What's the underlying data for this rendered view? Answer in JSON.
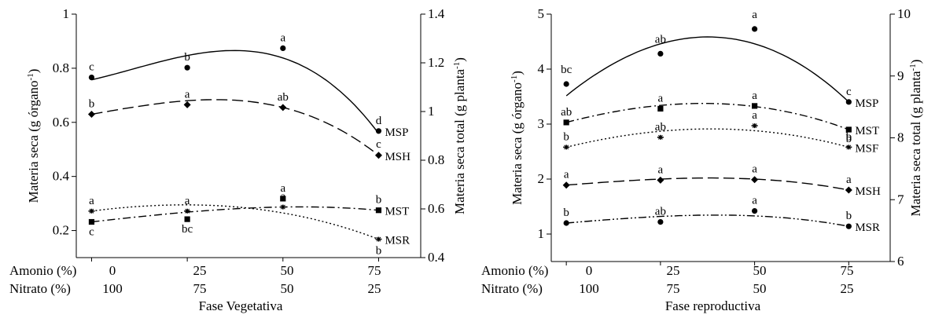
{
  "chart_data": [
    {
      "type": "scatter",
      "xlabel": "Fase Vegetativa",
      "row_labels": [
        "Amonio  (%)",
        "Nitrato   (%)"
      ],
      "x": [
        0,
        25,
        50,
        75
      ],
      "x_ticks_top": [
        "0",
        "25",
        "50",
        "75"
      ],
      "x_ticks_bottom": [
        "100",
        "75",
        "50",
        "25"
      ],
      "ylabel_left": "Materia seca (g órgano⁻¹)",
      "ylabel_right": "Materia seca total (g planta⁻¹)",
      "ylim_left": [
        0.1,
        1.0
      ],
      "ylim_right": [
        0.4,
        1.4
      ],
      "yticks_left": [
        0.2,
        0.4,
        0.6,
        0.8,
        1
      ],
      "yticks_left_labels": [
        "0.2",
        "0.4",
        "0.6",
        "0.8",
        "1"
      ],
      "yticks_right": [
        0.4,
        0.6,
        0.8,
        1.0,
        1.2,
        1.4
      ],
      "yticks_right_labels": [
        "0.4",
        "0.6",
        "0.8",
        "1",
        "1.2",
        "1.4"
      ],
      "series": [
        {
          "name": "MSP",
          "axis": "right",
          "marker": "circle",
          "line": "solid",
          "values": [
            1.14,
            1.18,
            1.26,
            0.92
          ],
          "fit": [
            1.13,
            1.23,
            1.22,
            0.91
          ],
          "letters": [
            "c",
            "b",
            "a",
            "d"
          ]
        },
        {
          "name": "MSH",
          "axis": "left",
          "marker": "diamond",
          "line": "longdash",
          "values": [
            0.63,
            0.665,
            0.655,
            0.478
          ],
          "fit": [
            0.63,
            0.68,
            0.655,
            0.478
          ],
          "letters": [
            "b",
            "a",
            "ab",
            "c"
          ]
        },
        {
          "name": "MST",
          "axis": "left",
          "marker": "square",
          "line": "dashdot",
          "values": [
            0.232,
            0.242,
            0.318,
            0.275
          ],
          "fit": [
            0.232,
            0.268,
            0.287,
            0.275
          ],
          "letters": [
            "c",
            "bc",
            "a",
            "b"
          ]
        },
        {
          "name": "MSR",
          "axis": "left",
          "marker": "star",
          "line": "dotted",
          "values": [
            0.272,
            0.272,
            0.287,
            0.168
          ],
          "fit": [
            0.272,
            0.295,
            0.265,
            0.168
          ],
          "letters": [
            "a",
            "a",
            "a",
            "b"
          ]
        }
      ]
    },
    {
      "type": "scatter",
      "xlabel": "Fase reproductiva",
      "row_labels": [
        "Amonio  (%)",
        "Nitrato   (%)"
      ],
      "x": [
        0,
        25,
        50,
        75
      ],
      "x_ticks_top": [
        "0",
        "25",
        "50",
        "75"
      ],
      "x_ticks_bottom": [
        "100",
        "75",
        "50",
        "25"
      ],
      "ylabel_left": "Materia seca (g órgano⁻¹)",
      "ylabel_right": "Materia seca total (g planta⁻¹)",
      "ylim_left": [
        0.5,
        5.0
      ],
      "ylim_right": [
        6.0,
        10.0
      ],
      "yticks_left": [
        1,
        2,
        3,
        4,
        5
      ],
      "yticks_left_labels": [
        "1",
        "2",
        "3",
        "4",
        "5"
      ],
      "yticks_right": [
        6,
        7,
        8,
        9,
        10
      ],
      "yticks_right_labels": [
        "6",
        "7",
        "8",
        "9",
        "10"
      ],
      "series": [
        {
          "name": "MSP",
          "axis": "right",
          "marker": "circle",
          "line": "solid",
          "values": [
            8.87,
            9.36,
            9.76,
            8.58
          ],
          "fit": [
            8.68,
            9.52,
            9.52,
            8.58
          ],
          "letters": [
            "bc",
            "ab",
            "a",
            "c"
          ]
        },
        {
          "name": "MST",
          "axis": "left",
          "marker": "square",
          "line": "dashdot",
          "values": [
            3.03,
            3.28,
            3.33,
            2.9
          ],
          "fit": [
            3.03,
            3.34,
            3.32,
            2.9
          ],
          "letters": [
            "ab",
            "a",
            "a",
            "b"
          ]
        },
        {
          "name": "MSF",
          "axis": "left",
          "marker": "star",
          "line": "dotted",
          "values": [
            2.58,
            2.76,
            2.97,
            2.58
          ],
          "fit": [
            2.58,
            2.87,
            2.88,
            2.58
          ],
          "letters": [
            "b",
            "ab",
            "a",
            "b"
          ]
        },
        {
          "name": "MSH",
          "axis": "left",
          "marker": "diamond",
          "line": "longdash",
          "values": [
            1.89,
            1.98,
            1.99,
            1.8
          ],
          "fit": [
            1.89,
            2.0,
            2.0,
            1.8
          ],
          "letters": [
            "a",
            "a",
            "a",
            "a"
          ]
        },
        {
          "name": "MSR",
          "axis": "left",
          "marker": "circle",
          "line": "dashdotdot",
          "values": [
            1.2,
            1.22,
            1.42,
            1.14
          ],
          "fit": [
            1.2,
            1.32,
            1.33,
            1.14
          ],
          "letters": [
            "b",
            "ab",
            "a",
            "b"
          ]
        }
      ]
    }
  ]
}
